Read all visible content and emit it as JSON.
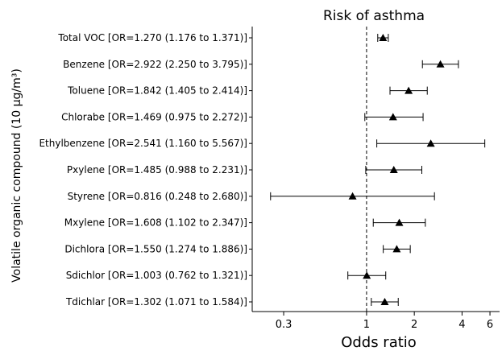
{
  "chart_data": {
    "type": "forest",
    "title": "Risk of asthma",
    "xlabel": "Odds ratio",
    "ylabel": "Volatile organic compound (10 μg/m³)",
    "x_scale": "log",
    "xlim": [
      0.19,
      6.9
    ],
    "x_ticks": [
      0.3,
      1,
      2,
      4,
      6
    ],
    "x_tick_labels": [
      "0.3",
      "1",
      "2",
      "4",
      "6"
    ],
    "reference_line": 1,
    "rows": [
      {
        "label": "Total VOC [OR=1.270 (1.176 to 1.371)]",
        "or": 1.27,
        "lo": 1.176,
        "hi": 1.371
      },
      {
        "label": "Benzene [OR=2.922 (2.250 to 3.795)]",
        "or": 2.922,
        "lo": 2.25,
        "hi": 3.795
      },
      {
        "label": "Toluene [OR=1.842 (1.405 to 2.414)]",
        "or": 1.842,
        "lo": 1.405,
        "hi": 2.414
      },
      {
        "label": "Chlorabe [OR=1.469 (0.975 to 2.272)]",
        "or": 1.469,
        "lo": 0.975,
        "hi": 2.272
      },
      {
        "label": "Ethylbenzene [OR=2.541 (1.160 to 5.567)]",
        "or": 2.541,
        "lo": 1.16,
        "hi": 5.567
      },
      {
        "label": "Pxylene [OR=1.485 (0.988 to 2.231)]",
        "or": 1.485,
        "lo": 0.988,
        "hi": 2.231
      },
      {
        "label": "Styrene [OR=0.816 (0.248 to 2.680)]",
        "or": 0.816,
        "lo": 0.248,
        "hi": 2.68
      },
      {
        "label": "Mxylene [OR=1.608 (1.102 to 2.347)]",
        "or": 1.608,
        "lo": 1.102,
        "hi": 2.347
      },
      {
        "label": "Dichlora [OR=1.550 (1.274 to 1.886)]",
        "or": 1.55,
        "lo": 1.274,
        "hi": 1.886
      },
      {
        "label": "Sdichlor [OR=1.003 (0.762 to 1.321)]",
        "or": 1.003,
        "lo": 0.762,
        "hi": 1.321
      },
      {
        "label": "Tdichlar [OR=1.302 (1.071 to 1.584)]",
        "or": 1.302,
        "lo": 1.071,
        "hi": 1.584
      }
    ]
  }
}
